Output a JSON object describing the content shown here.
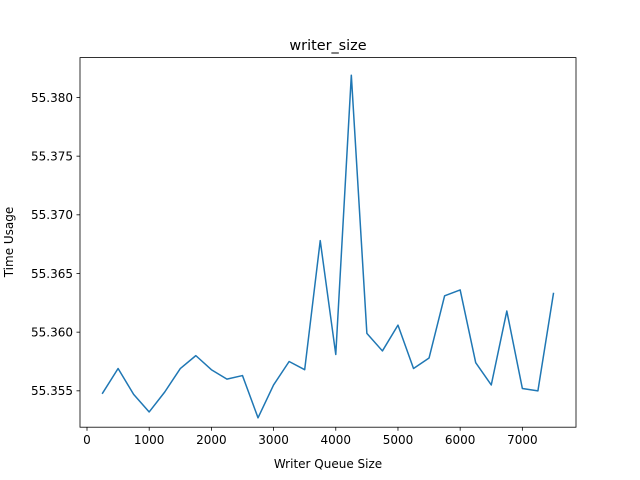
{
  "chart_data": {
    "type": "line",
    "title": "writer_size",
    "xlabel": "Writer Queue Size",
    "ylabel": "Time Usage",
    "xlim": [
      -112.5,
      7862.5
    ],
    "ylim": [
      55.3519,
      55.3834
    ],
    "xticks": [
      0,
      1000,
      2000,
      3000,
      4000,
      5000,
      6000,
      7000
    ],
    "xtick_labels": [
      "0",
      "1000",
      "2000",
      "3000",
      "4000",
      "5000",
      "6000",
      "7000"
    ],
    "yticks": [
      55.355,
      55.36,
      55.365,
      55.37,
      55.375,
      55.38
    ],
    "ytick_labels": [
      "55.355",
      "55.360",
      "55.365",
      "55.370",
      "55.375",
      "55.380"
    ],
    "grid": false,
    "series": [
      {
        "color": "#1f77b4",
        "x": [
          250,
          500,
          750,
          1000,
          1250,
          1500,
          1750,
          2000,
          2250,
          2500,
          2750,
          3000,
          3250,
          3500,
          3750,
          4000,
          4250,
          4500,
          4750,
          5000,
          5250,
          5500,
          5750,
          6000,
          6250,
          6500,
          6750,
          7000,
          7250,
          7500
        ],
        "y": [
          55.3548,
          55.3569,
          55.3547,
          55.3532,
          55.3549,
          55.3569,
          55.358,
          55.3568,
          55.356,
          55.3563,
          55.3527,
          55.3555,
          55.3575,
          55.3568,
          55.3678,
          55.3581,
          55.3819,
          55.3599,
          55.3584,
          55.3606,
          55.3569,
          55.3578,
          55.3631,
          55.3636,
          55.3574,
          55.3555,
          55.3618,
          55.3552,
          55.355,
          55.3633
        ]
      }
    ]
  }
}
